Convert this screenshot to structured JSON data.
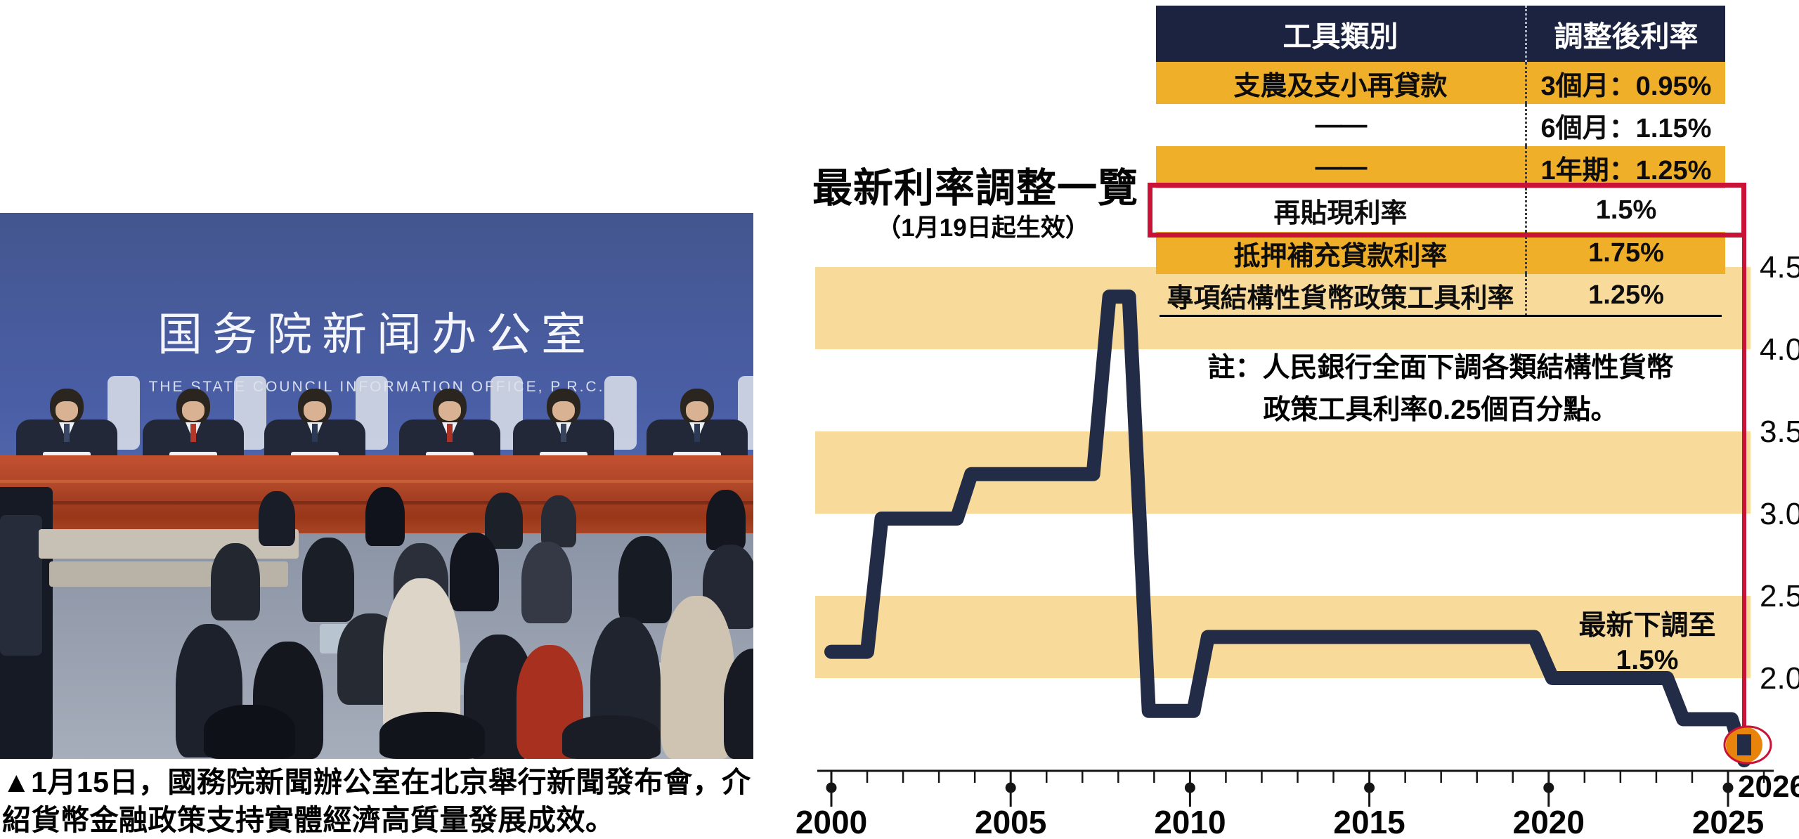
{
  "colors": {
    "header_navy": "#1C2340",
    "line_navy": "#232C47",
    "gold": "#F0AF28",
    "stripe": "#F8DB9B",
    "red": "#C81336",
    "orange_dot": "#E8830C",
    "axis_black": "#151515"
  },
  "photo": {
    "backdrop_title": "国务院新闻办公室",
    "backdrop_subtitle": "THE STATE COUNCIL INFORMATION OFFICE, P.R.C."
  },
  "caption": {
    "line1": "▲1月15日，國務院新聞辦公室在北京舉行新聞發布會，介",
    "line2": "紹貨幣金融政策支持實體經濟高質量發展成效。"
  },
  "infographic": {
    "title": "最新利率調整一覽",
    "subtitle": "（1月19日起生效）",
    "note_line1": "註：人民銀行全面下調各類結構性貨幣",
    "note_line2": "政策工具利率0.25個百分點。",
    "annotation_line1": "最新下調至",
    "annotation_line2": "1.5%",
    "table": {
      "headers": [
        "工具類別",
        "調整後利率"
      ],
      "rows": [
        {
          "tool": "支農及支小再貸款",
          "rate": "3個月：0.95%"
        },
        {
          "tool": "——",
          "rate": "6個月：1.15%"
        },
        {
          "tool": "——",
          "rate": "1年期：1.25%"
        },
        {
          "tool": "再貼現利率",
          "rate": "1.5%"
        },
        {
          "tool": "抵押補充貸款利率",
          "rate": "1.75%"
        },
        {
          "tool": "專項結構性貨幣政策工具利率",
          "rate": "1.25%"
        }
      ]
    }
  },
  "chart_data": {
    "type": "line",
    "title": "最新利率調整一覽（1月19日起生效）",
    "xlabel": "",
    "ylabel": "",
    "series": [
      {
        "name": "再貼現利率",
        "points": [
          [
            2000.0,
            2.16
          ],
          [
            2001.0,
            2.16
          ],
          [
            2001.4,
            2.97
          ],
          [
            2003.5,
            2.97
          ],
          [
            2003.9,
            3.24
          ],
          [
            2007.3,
            3.24
          ],
          [
            2007.75,
            4.32
          ],
          [
            2008.3,
            4.32
          ],
          [
            2008.85,
            1.8
          ],
          [
            2010.1,
            1.8
          ],
          [
            2010.5,
            2.25
          ],
          [
            2019.6,
            2.25
          ],
          [
            2020.1,
            2.0
          ],
          [
            2023.3,
            2.0
          ],
          [
            2023.75,
            1.75
          ],
          [
            2025.1,
            1.75
          ],
          [
            2025.45,
            1.5
          ]
        ]
      }
    ],
    "end_dot": {
      "year": 2025.45,
      "value": 1.5,
      "label": "最新下調至1.5%"
    },
    "x_ticks": [
      2000,
      2005,
      2010,
      2015,
      2020,
      2025
    ],
    "x_minor_tick_step": 1,
    "x_end_label": "2026",
    "y_ticks": [
      4.5,
      4.0,
      3.5,
      3.0,
      2.5,
      2.0
    ],
    "stripes": [
      [
        4.0,
        4.5
      ],
      [
        3.0,
        3.5
      ],
      [
        2.0,
        2.5
      ]
    ],
    "xlim": [
      2000,
      2026.6
    ],
    "ylim": [
      1.4,
      4.7
    ],
    "grid": false,
    "legend": "none"
  }
}
